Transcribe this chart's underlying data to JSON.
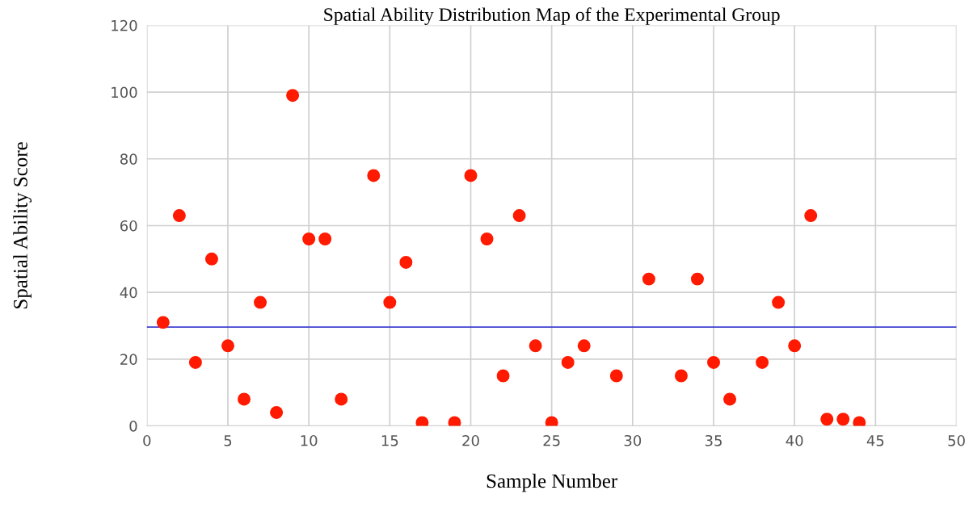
{
  "chart_data": {
    "type": "scatter",
    "title": "Spatial Ability Distribution Map of the Experimental Group",
    "xlabel": "Sample Number",
    "ylabel": "Spatial Ability Score",
    "x": [
      1,
      2,
      3,
      4,
      5,
      6,
      7,
      8,
      9,
      10,
      11,
      12,
      14,
      15,
      16,
      17,
      19,
      20,
      21,
      22,
      23,
      24,
      25,
      26,
      27,
      29,
      31,
      33,
      34,
      35,
      36,
      38,
      39,
      40,
      41,
      42,
      43,
      44
    ],
    "series": [
      {
        "color": "#ff1a00",
        "values": [
          31,
          63,
          19,
          50,
          24,
          8,
          37,
          4,
          99,
          56,
          56,
          8,
          75,
          37,
          49,
          1,
          1,
          75,
          56,
          15,
          63,
          24,
          1,
          19,
          24,
          15,
          44,
          15,
          44,
          19,
          8,
          19,
          37,
          24,
          63,
          2,
          2,
          1
        ]
      }
    ],
    "xlim": [
      0,
      50
    ],
    "xticks": [
      0,
      5,
      10,
      15,
      20,
      25,
      30,
      35,
      40,
      45,
      50
    ],
    "ylim": [
      0,
      120
    ],
    "yticks": [
      0,
      20,
      40,
      60,
      80,
      100,
      120
    ],
    "ref_lines": [
      {
        "axis": "y",
        "value": 29.6,
        "color": "#3f3fd0",
        "line_style": "solid"
      }
    ],
    "grid": true,
    "marker": "circle"
  }
}
